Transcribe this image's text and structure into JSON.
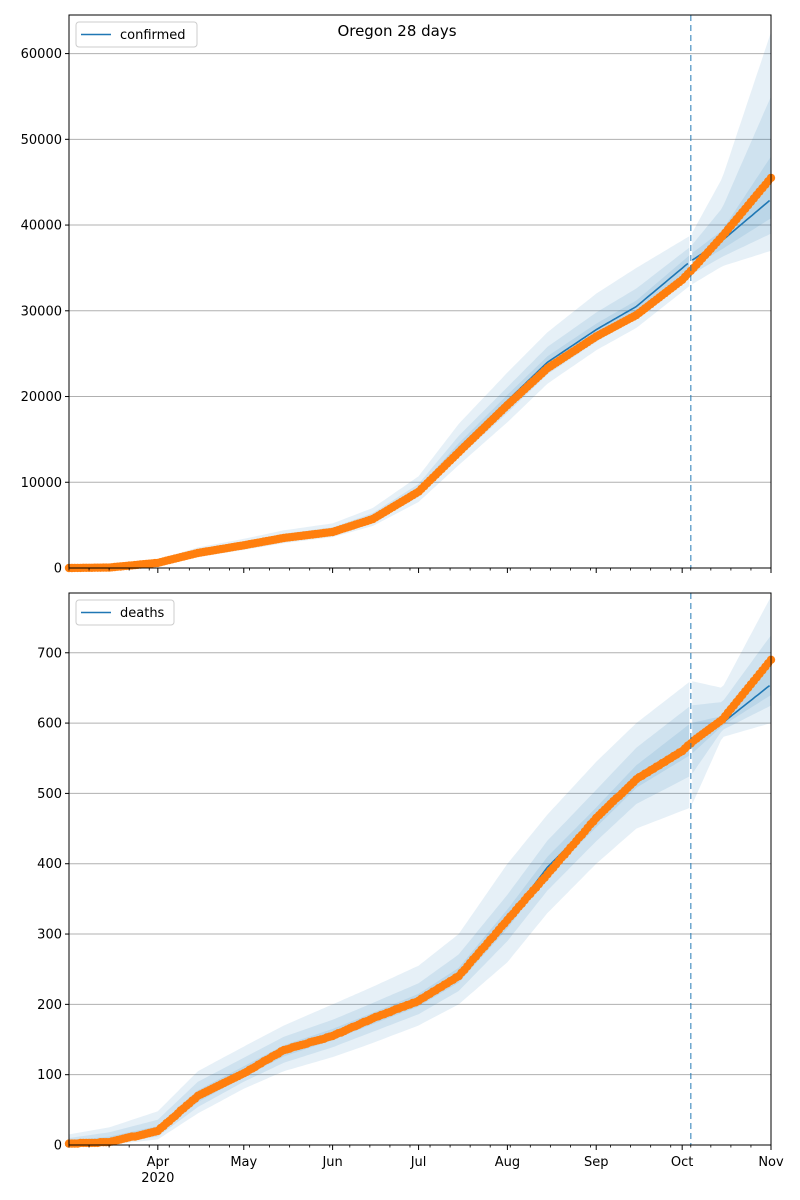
{
  "title": "Oregon 28 days",
  "colors": {
    "model_line": "#1f77b4",
    "observed_points": "#ff7f0e",
    "band": "#1f77b4",
    "forecast_marker": "#1f77b4",
    "grid": "#b0b0b0"
  },
  "chart_data": [
    {
      "type": "line",
      "legend": "confirmed",
      "legend_position": "top-left",
      "grid": "horizontal",
      "x_range": [
        "2020-03-01",
        "2020-11-01"
      ],
      "ylim": [
        0,
        64500
      ],
      "yticks": [
        0,
        10000,
        20000,
        30000,
        40000,
        50000,
        60000
      ],
      "forecast_start": "2020-10-04",
      "model": {
        "x": [
          "2020-03-01",
          "2020-03-15",
          "2020-04-01",
          "2020-04-15",
          "2020-05-01",
          "2020-05-15",
          "2020-06-01",
          "2020-06-15",
          "2020-07-01",
          "2020-07-15",
          "2020-08-01",
          "2020-08-15",
          "2020-09-01",
          "2020-09-15",
          "2020-10-04",
          "2020-10-15",
          "2020-11-01"
        ],
        "y": [
          80,
          150,
          700,
          1800,
          2700,
          3600,
          4300,
          5800,
          9000,
          14000,
          19500,
          24000,
          27800,
          30500,
          35800,
          38200,
          43000
        ],
        "bands": [
          {
            "lower": [
              30,
              70,
              450,
              1300,
              2100,
              2900,
              3600,
              4900,
              7700,
              12000,
              17000,
              21500,
              25400,
              28000,
              33000,
              35200,
              37000
            ],
            "upper": [
              160,
              260,
              1000,
              2400,
              3400,
              4400,
              5200,
              7000,
              10700,
              16800,
              22800,
              27500,
              32000,
              35000,
              38800,
              45500,
              62500
            ]
          },
          {
            "lower": [
              50,
              100,
              550,
              1500,
              2350,
              3150,
              3850,
              5250,
              8300,
              12900,
              18100,
              22600,
              26400,
              29100,
              34200,
              36300,
              39000
            ],
            "upper": [
              120,
              210,
              850,
              2100,
              3050,
              4000,
              4750,
              6400,
              9800,
              15400,
              21100,
              25800,
              29800,
              32600,
              37500,
              42000,
              55000
            ]
          },
          {
            "lower": [
              65,
              125,
              620,
              1650,
              2520,
              3380,
              4080,
              5530,
              8650,
              13450,
              18800,
              23300,
              27100,
              29800,
              35000,
              37200,
              40800
            ],
            "upper": [
              95,
              175,
              780,
              1950,
              2880,
              3820,
              4520,
              6070,
              9350,
              14550,
              20200,
              24700,
              28500,
              31200,
              36600,
              39400,
              48000
            ]
          }
        ]
      },
      "observed": {
        "dates": [
          "2020-03-01",
          "2020-03-15",
          "2020-04-01",
          "2020-04-15",
          "2020-05-01",
          "2020-05-15",
          "2020-06-01",
          "2020-06-15",
          "2020-07-01",
          "2020-07-15",
          "2020-08-01",
          "2020-08-15",
          "2020-09-01",
          "2020-09-15",
          "2020-10-01",
          "2020-10-05",
          "2020-10-15",
          "2020-11-01"
        ],
        "values": [
          0,
          50,
          600,
          1750,
          2650,
          3500,
          4200,
          5700,
          8900,
          13500,
          19000,
          23300,
          27000,
          29500,
          33600,
          35000,
          38700,
          45500
        ]
      }
    },
    {
      "type": "line",
      "legend": "deaths",
      "legend_position": "top-left",
      "grid": "horizontal",
      "x_range": [
        "2020-03-01",
        "2020-11-01"
      ],
      "ylim": [
        0,
        785
      ],
      "yticks": [
        0,
        100,
        200,
        300,
        400,
        500,
        600,
        700
      ],
      "forecast_start": "2020-10-04",
      "model": {
        "x": [
          "2020-03-01",
          "2020-03-15",
          "2020-04-01",
          "2020-04-15",
          "2020-05-01",
          "2020-05-15",
          "2020-06-01",
          "2020-06-15",
          "2020-07-01",
          "2020-07-15",
          "2020-08-01",
          "2020-08-15",
          "2020-09-01",
          "2020-09-15",
          "2020-10-04",
          "2020-10-15",
          "2020-11-01"
        ],
        "y": [
          2,
          6,
          20,
          68,
          104,
          133,
          156,
          179,
          205,
          240,
          320,
          395,
          465,
          520,
          570,
          600,
          655
        ],
        "bands": [
          {
            "lower": [
              0,
              0,
              8,
              45,
              80,
              105,
              125,
              145,
              170,
              200,
              260,
              330,
              400,
              450,
              480,
              580,
              600
            ],
            "upper": [
              15,
              25,
              48,
              105,
              140,
              170,
              200,
              225,
              255,
              300,
              400,
              470,
              545,
              600,
              660,
              650,
              780
            ]
          },
          {
            "lower": [
              0,
              2,
              12,
              54,
              90,
              117,
              139,
              161,
              186,
              219,
              290,
              362,
              432,
              485,
              525,
              590,
              625
            ],
            "upper": [
              10,
              18,
              36,
              90,
              124,
              154,
              178,
              202,
              230,
              271,
              356,
              433,
              505,
              565,
              625,
              630,
              725
            ]
          },
          {
            "lower": [
              0,
              4,
              16,
              61,
              97,
              126,
              149,
              172,
              197,
              231,
              308,
              382,
              452,
              508,
              555,
              596,
              640
            ],
            "upper": [
              6,
              12,
              27,
              78,
              112,
              142,
              165,
              188,
              215,
              252,
              335,
              410,
              480,
              540,
              600,
              610,
              690
            ]
          }
        ]
      },
      "observed": {
        "dates": [
          "2020-03-01",
          "2020-03-15",
          "2020-04-01",
          "2020-04-15",
          "2020-05-01",
          "2020-05-15",
          "2020-06-01",
          "2020-06-15",
          "2020-07-01",
          "2020-07-15",
          "2020-08-01",
          "2020-08-15",
          "2020-09-01",
          "2020-09-15",
          "2020-10-01",
          "2020-10-05",
          "2020-10-15",
          "2020-11-01"
        ],
        "values": [
          2,
          4,
          20,
          70,
          102,
          135,
          155,
          180,
          205,
          240,
          320,
          385,
          465,
          520,
          560,
          575,
          605,
          690
        ]
      }
    }
  ],
  "x_axis": {
    "tick_labels": [
      "Apr",
      "May",
      "Jun",
      "Jul",
      "Aug",
      "Sep",
      "Oct",
      "Nov"
    ],
    "tick_dates": [
      "2020-04-01",
      "2020-05-01",
      "2020-06-01",
      "2020-07-01",
      "2020-08-01",
      "2020-09-01",
      "2020-10-01",
      "2020-11-01"
    ],
    "year_label": "2020"
  }
}
